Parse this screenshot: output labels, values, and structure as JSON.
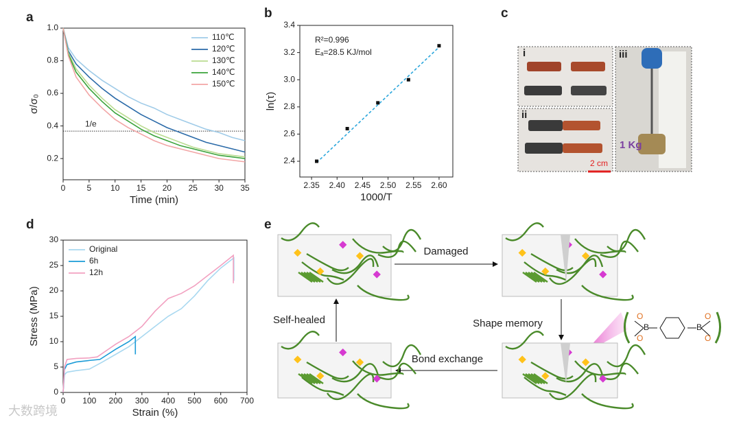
{
  "panel_labels": [
    "a",
    "b",
    "c",
    "d",
    "e"
  ],
  "chart_data": [
    {
      "type": "line",
      "xlabel": "Time (min)",
      "ylabel": "σ/σ₀",
      "x": [
        0,
        1,
        2.5,
        5,
        7.5,
        10,
        12.5,
        15,
        17.5,
        20,
        22.5,
        25,
        27.5,
        30,
        32.5,
        35
      ],
      "series": [
        {
          "name": "110℃",
          "color": "#9fcbe8",
          "values": [
            1.0,
            0.88,
            0.81,
            0.74,
            0.68,
            0.63,
            0.58,
            0.54,
            0.51,
            0.47,
            0.44,
            0.41,
            0.38,
            0.36,
            0.33,
            0.31
          ]
        },
        {
          "name": "120℃",
          "color": "#2a6aa8",
          "values": [
            1.0,
            0.86,
            0.78,
            0.7,
            0.63,
            0.57,
            0.52,
            0.47,
            0.43,
            0.39,
            0.36,
            0.33,
            0.3,
            0.28,
            0.26,
            0.24
          ]
        },
        {
          "name": "130℃",
          "color": "#b9db8f",
          "values": [
            1.0,
            0.85,
            0.75,
            0.65,
            0.57,
            0.5,
            0.45,
            0.4,
            0.36,
            0.33,
            0.3,
            0.27,
            0.25,
            0.23,
            0.22,
            0.21
          ]
        },
        {
          "name": "140℃",
          "color": "#3aa33a",
          "values": [
            1.0,
            0.84,
            0.73,
            0.63,
            0.55,
            0.48,
            0.43,
            0.38,
            0.34,
            0.31,
            0.28,
            0.26,
            0.24,
            0.22,
            0.21,
            0.2
          ]
        },
        {
          "name": "150℃",
          "color": "#f2a5a5",
          "values": [
            1.0,
            0.83,
            0.7,
            0.59,
            0.51,
            0.44,
            0.39,
            0.35,
            0.31,
            0.28,
            0.26,
            0.24,
            0.22,
            0.2,
            0.19,
            0.18
          ]
        }
      ],
      "reference_line": {
        "value": 0.368,
        "label": "1/e"
      },
      "xlim": [
        0,
        35
      ],
      "xticks": [
        0,
        5,
        10,
        15,
        20,
        25,
        30,
        35
      ],
      "ylim": [
        0.07,
        1.0
      ],
      "yticks": [
        0.2,
        0.4,
        0.6,
        0.8,
        {
          "value": 1,
          "label": "1.0"
        }
      ],
      "legend": "upper right"
    },
    {
      "type": "scatter",
      "xlabel": "1000/T",
      "ylabel": "ln(τ)",
      "x": [
        2.36,
        2.42,
        2.48,
        2.54,
        2.6
      ],
      "values": [
        2.4,
        2.64,
        2.83,
        3.0,
        3.25
      ],
      "color": "#111111",
      "fit_line": {
        "x": [
          2.36,
          2.6
        ],
        "values": [
          2.39,
          3.24
        ],
        "color": "#2aa6dc"
      },
      "annotations": [
        "R²=0.996",
        "Eₐ=28.5 KJ/mol"
      ],
      "xlim": [
        2.327,
        2.627
      ],
      "xticks": [
        2.35,
        {
          "value": 2.4,
          "label": "2.40"
        },
        2.45,
        {
          "value": 2.5,
          "label": "2.50"
        },
        2.55,
        {
          "value": 2.6,
          "label": "2.60"
        }
      ],
      "ylim": [
        2.284,
        3.4
      ],
      "yticks": [
        2.4,
        2.6,
        2.8,
        {
          "value": 3,
          "label": "3.0"
        },
        3.2,
        3.4
      ]
    },
    {
      "type": "line",
      "xlabel": "Strain (%)",
      "ylabel": "Stress (MPa)",
      "series": [
        {
          "name": "Original",
          "color": "#a8d8f0",
          "x": [
            0,
            5,
            15,
            50,
            100,
            150,
            200,
            250,
            300,
            350,
            400,
            450,
            500,
            550,
            600,
            650,
            650
          ],
          "values": [
            0,
            3.5,
            4,
            4.3,
            4.6,
            6,
            7.5,
            9,
            11,
            13,
            15,
            16.5,
            19,
            22,
            24.5,
            26.5,
            22
          ]
        },
        {
          "name": "6h",
          "color": "#1a9bd7",
          "x": [
            0,
            5,
            15,
            50,
            100,
            140,
            200,
            250,
            275,
            275
          ],
          "values": [
            0,
            4.5,
            5.5,
            6,
            6.3,
            6.5,
            8.5,
            10,
            11,
            7.5
          ]
        },
        {
          "name": "12h",
          "color": "#f2a0c0",
          "x": [
            0,
            5,
            15,
            50,
            100,
            130,
            200,
            250,
            300,
            350,
            400,
            450,
            500,
            550,
            600,
            648,
            648
          ],
          "values": [
            0,
            5,
            6.5,
            6.7,
            6.8,
            7,
            9.5,
            11,
            13,
            16,
            18.5,
            19.5,
            21,
            23,
            25,
            27,
            21.5
          ]
        }
      ],
      "xlim": [
        0,
        700
      ],
      "xticks": [
        0,
        100,
        200,
        300,
        400,
        500,
        600,
        700
      ],
      "ylim": [
        0,
        30
      ],
      "yticks": [
        0,
        5,
        10,
        15,
        20,
        25,
        30
      ],
      "legend": "upper left"
    }
  ],
  "photos": {
    "labels": [
      "i",
      "ii",
      "iii"
    ],
    "weight": "1 Kg",
    "scale_bar": "2 cm"
  },
  "diagram": {
    "steps": [
      "Damaged",
      "Shape memory",
      "Bond exchange",
      "Self-healed"
    ],
    "chem_labels": [
      "O",
      "O",
      "B",
      "B",
      "O",
      "O"
    ]
  },
  "watermark": "大数跨境"
}
